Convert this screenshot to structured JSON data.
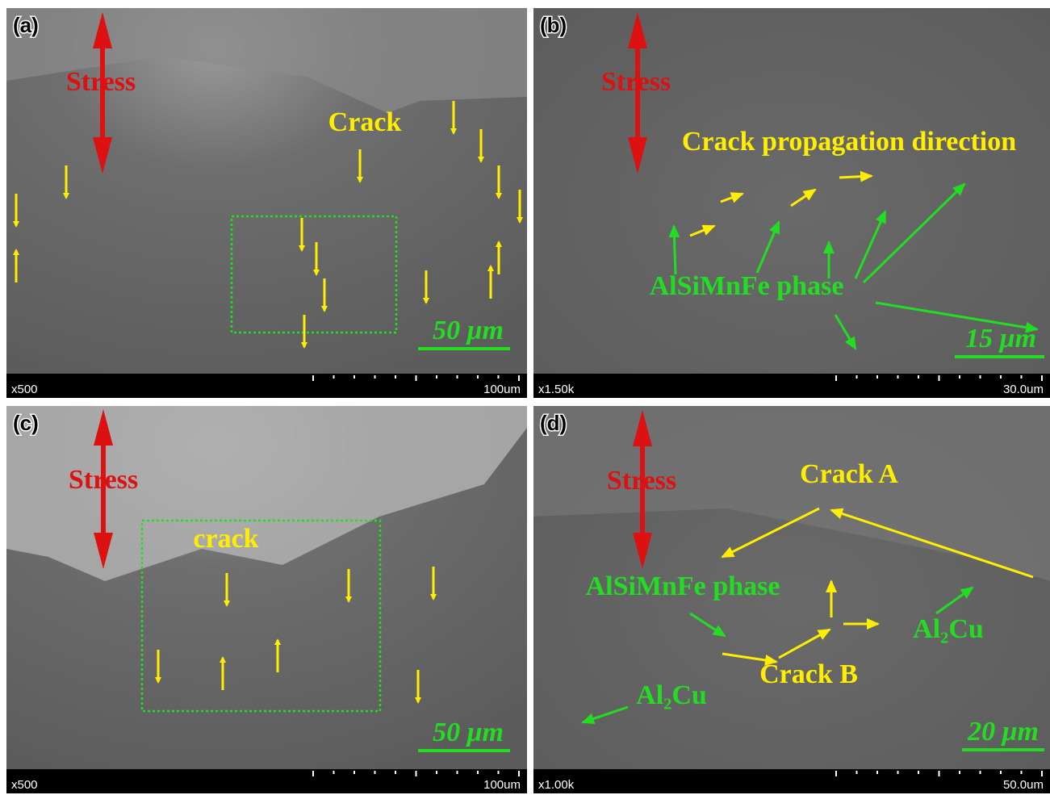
{
  "panels": [
    {
      "label": "(a)",
      "magnification": "x500",
      "field_width": "100um",
      "scale_bar": "50 μm",
      "annotations": [
        "Stress",
        "Crack"
      ]
    },
    {
      "label": "(b)",
      "magnification": "x1.50k",
      "field_width": "30.0um",
      "scale_bar": "15 μm",
      "annotations": [
        "Stress",
        "Crack propagation direction",
        "AlSiMnFe phase"
      ]
    },
    {
      "label": "(c)",
      "magnification": "x500",
      "field_width": "100um",
      "scale_bar": "50 μm",
      "annotations": [
        "Stress",
        "crack"
      ]
    },
    {
      "label": "(d)",
      "magnification": "x1.00k",
      "field_width": "50.0um",
      "scale_bar": "20 μm",
      "annotations": [
        "Stress",
        "Crack A",
        "AlSiMnFe phase",
        "Al₂Cu",
        "Crack B",
        "Al₂Cu"
      ]
    }
  ]
}
